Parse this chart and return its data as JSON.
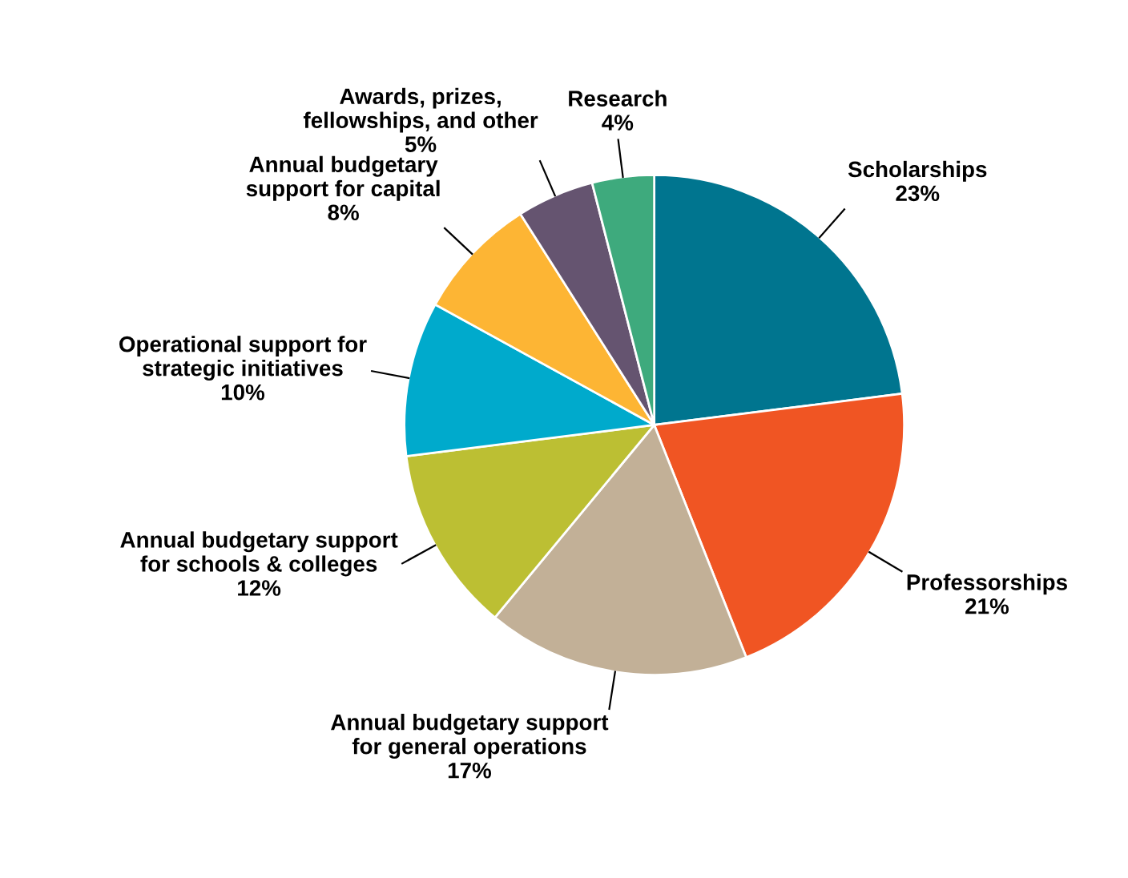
{
  "chart_data": {
    "type": "pie",
    "categories": [
      "Scholarships",
      "Professorships",
      "Annual budgetary support\nfor general operations",
      "Annual budgetary support\nfor schools & colleges",
      "Operational support for\nstrategic initiatives",
      "Annual budgetary\nsupport for capital",
      "Awards, prizes,\nfellowships, and other",
      "Research"
    ],
    "values": [
      23,
      21,
      17,
      12,
      10,
      8,
      5,
      4
    ],
    "value_labels": [
      "23%",
      "21%",
      "17%",
      "12%",
      "10%",
      "8%",
      "5%",
      "4%"
    ],
    "colors": [
      "#00758f",
      "#f05523",
      "#c2b097",
      "#bcbf33",
      "#00aacc",
      "#fdb534",
      "#655470",
      "#3eaa7d"
    ],
    "legend": false
  }
}
